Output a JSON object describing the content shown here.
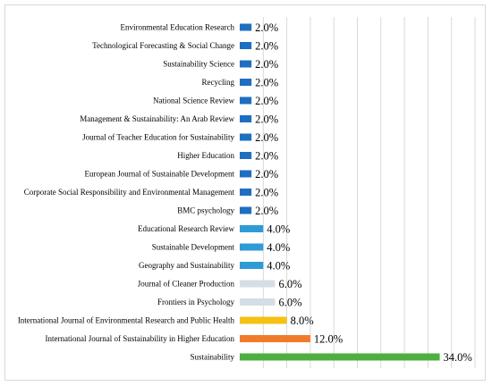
{
  "chart_data": {
    "type": "bar",
    "orientation": "horizontal",
    "categories": [
      "Environmental Education Research",
      "Technological Forecasting & Social Change",
      "Sustainability Science",
      "Recycling",
      "National Science Review",
      "Management & Sustainability: An Arab Review",
      "Journal of Teacher Education for Sustainability",
      "Higher Education",
      "European Journal of Sustainable Development",
      "Corporate Social Responsibility and Environmental Management",
      "BMC psychology",
      "Educational Research Review",
      "Sustainable Development",
      "Geography and Sustainability",
      "Journal of Cleaner Production",
      "Frontiers in Psychology",
      "International Journal of Environmental Research and Public Health",
      "International Journal of Sustainability in Higher Education",
      "Sustainability"
    ],
    "values": [
      2.0,
      2.0,
      2.0,
      2.0,
      2.0,
      2.0,
      2.0,
      2.0,
      2.0,
      2.0,
      2.0,
      4.0,
      4.0,
      4.0,
      6.0,
      6.0,
      8.0,
      12.0,
      34.0
    ],
    "value_labels": [
      "2.0%",
      "2.0%",
      "2.0%",
      "2.0%",
      "2.0%",
      "2.0%",
      "2.0%",
      "2.0%",
      "2.0%",
      "2.0%",
      "2.0%",
      "4.0%",
      "4.0%",
      "4.0%",
      "6.0%",
      "6.0%",
      "8.0%",
      "12.0%",
      "34.0%"
    ],
    "colors": [
      "#1f6fc0",
      "#1f6fc0",
      "#1f6fc0",
      "#1f6fc0",
      "#1f6fc0",
      "#1f6fc0",
      "#1f6fc0",
      "#1f6fc0",
      "#1f6fc0",
      "#1f6fc0",
      "#1f6fc0",
      "#2e9bd6",
      "#2e9bd6",
      "#2e9bd6",
      "#d5dde6",
      "#d5dde6",
      "#f5c116",
      "#f07c2a",
      "#4caf3f"
    ],
    "unit": "%",
    "xlim": [
      0,
      40
    ],
    "grid": true,
    "title": "",
    "xlabel": "",
    "ylabel": ""
  }
}
